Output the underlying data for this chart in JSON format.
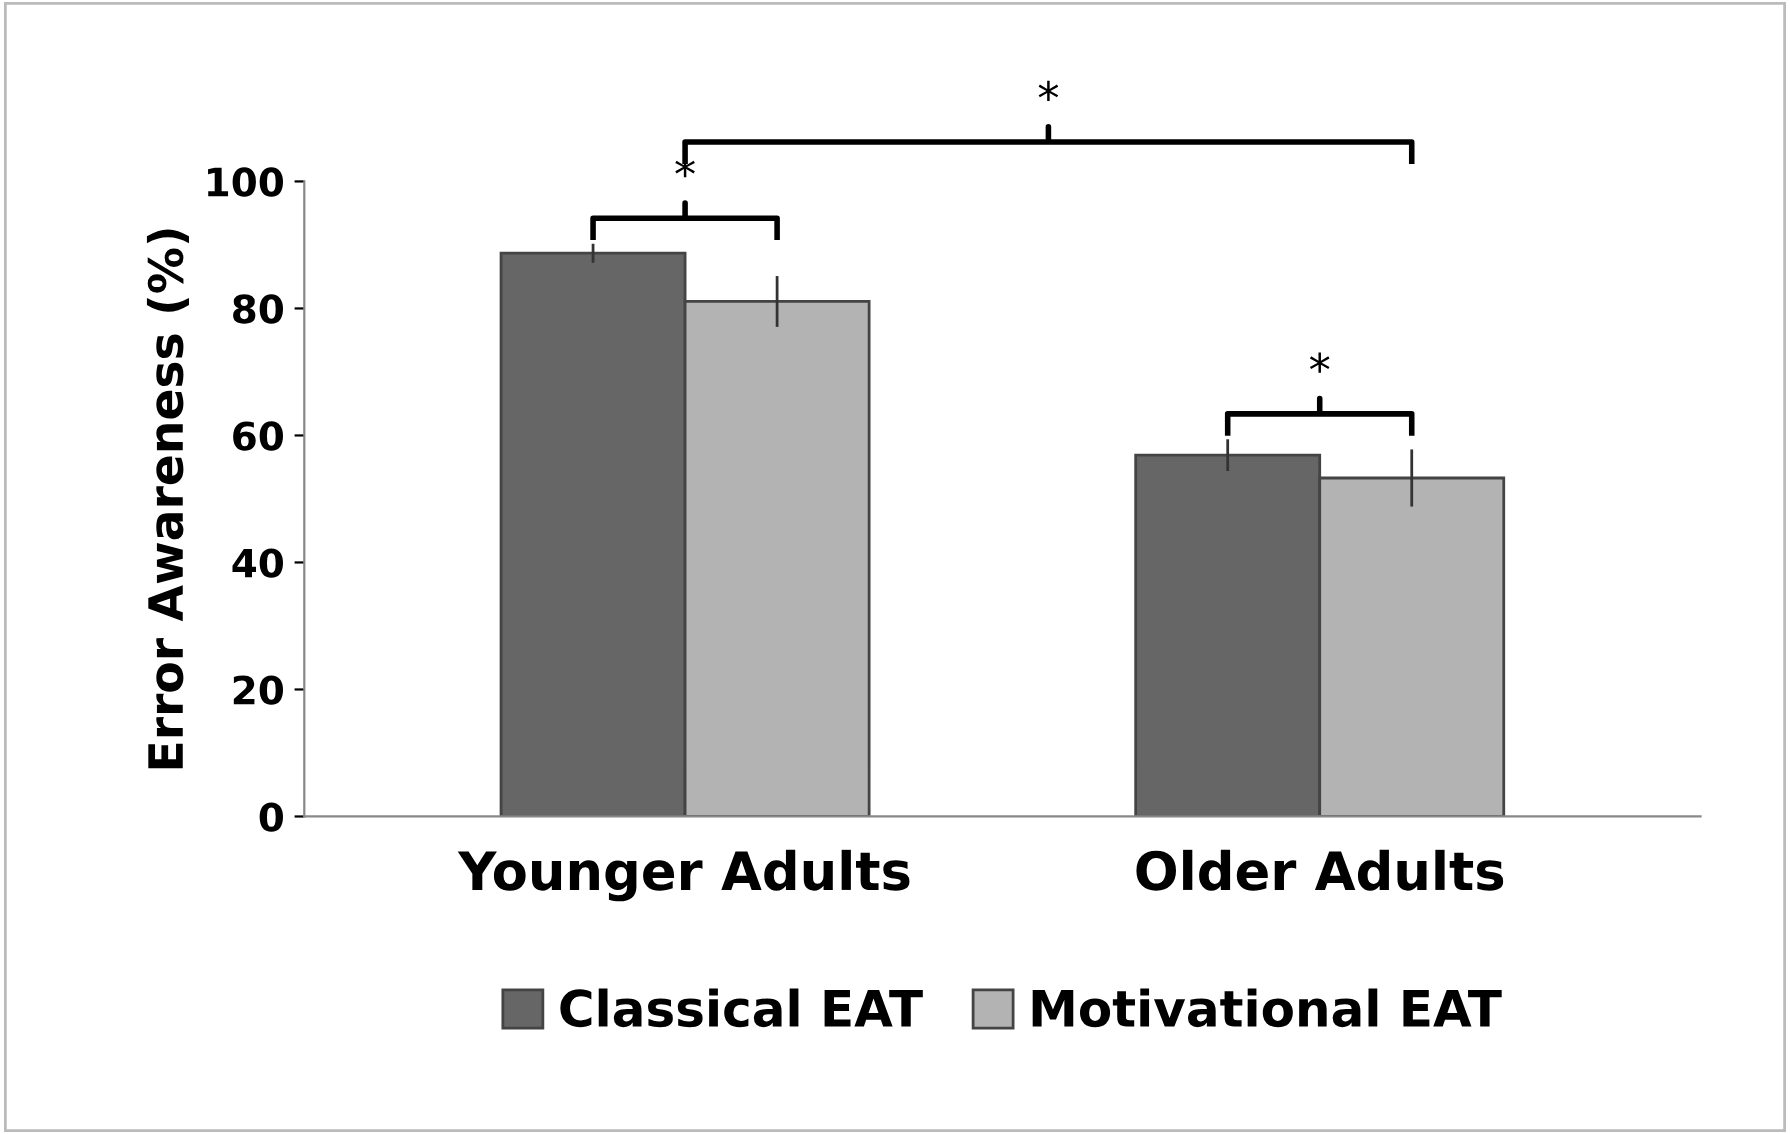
{
  "chart_data": {
    "type": "bar",
    "ylabel": "Error Awareness (%)",
    "categories": [
      "Younger Adults",
      "Older Adults"
    ],
    "series": [
      {
        "name": "Classical EAT",
        "color": "#666666",
        "values": [
          88.7,
          56.9
        ],
        "errors": [
          1.5,
          2.5
        ]
      },
      {
        "name": "Motivational EAT",
        "color": "#b3b3b3",
        "values": [
          81.1,
          53.3
        ],
        "errors": [
          4,
          4.5
        ]
      }
    ],
    "ylim": [
      0,
      100
    ],
    "yticks": [
      0,
      20,
      40,
      60,
      80,
      100
    ],
    "grid": false,
    "legend": "bottom",
    "annotations": [
      "*",
      "*",
      "*"
    ]
  }
}
